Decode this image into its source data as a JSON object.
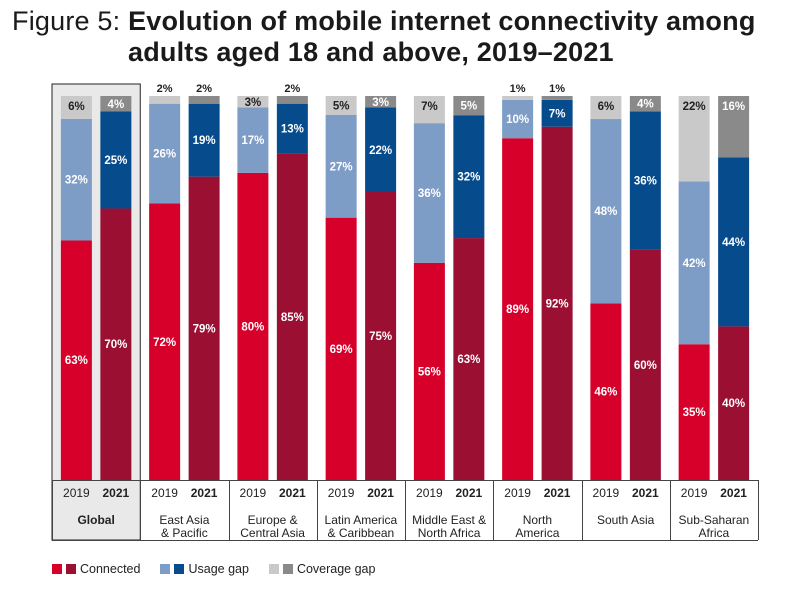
{
  "title": {
    "prefix": "Figure 5:",
    "line1": "Evolution of mobile internet connectivity among",
    "line2": "adults aged 18 and above, 2019–2021"
  },
  "colors": {
    "connected_2019": "#d6002a",
    "connected_2021": "#9b0f33",
    "usage_2019": "#7d9cc6",
    "usage_2021": "#064b8c",
    "coverage_2019": "#c9c9c9",
    "coverage_2021": "#8a8a8a",
    "global_bg": "#e9e9e9"
  },
  "legend": [
    {
      "label": "Connected",
      "c2019": "#d6002a",
      "c2021": "#9b0f33"
    },
    {
      "label": "Usage gap",
      "c2019": "#7d9cc6",
      "c2021": "#064b8c"
    },
    {
      "label": "Coverage gap",
      "c2019": "#c9c9c9",
      "c2021": "#8a8a8a"
    }
  ],
  "chart_data": {
    "type": "bar",
    "stacked": true,
    "percent": true,
    "ylim": [
      0,
      100
    ],
    "years": [
      "2019",
      "2021"
    ],
    "series_order": [
      "Connected",
      "Usage gap",
      "Coverage gap"
    ],
    "categories": [
      {
        "label": [
          "Global"
        ],
        "bold": true,
        "v2019": [
          63,
          32,
          6
        ],
        "v2021": [
          70,
          25,
          4
        ]
      },
      {
        "label": [
          "East Asia",
          "& Pacific"
        ],
        "v2019": [
          72,
          26,
          2
        ],
        "v2021": [
          79,
          19,
          2
        ]
      },
      {
        "label": [
          "Europe &",
          "Central Asia"
        ],
        "v2019": [
          80,
          17,
          3
        ],
        "v2021": [
          85,
          13,
          2
        ]
      },
      {
        "label": [
          "Latin America",
          "& Caribbean"
        ],
        "v2019": [
          69,
          27,
          5
        ],
        "v2021": [
          75,
          22,
          3
        ]
      },
      {
        "label": [
          "Middle East &",
          "North Africa"
        ],
        "v2019": [
          56,
          36,
          7
        ],
        "v2021": [
          63,
          32,
          5
        ]
      },
      {
        "label": [
          "North",
          "America"
        ],
        "v2019": [
          89,
          10,
          1
        ],
        "v2021": [
          92,
          7,
          1
        ]
      },
      {
        "label": [
          "South Asia"
        ],
        "v2019": [
          46,
          48,
          6
        ],
        "v2021": [
          60,
          36,
          4
        ]
      },
      {
        "label": [
          "Sub-Saharan",
          "Africa"
        ],
        "v2019": [
          35,
          42,
          22
        ],
        "v2021": [
          40,
          44,
          16
        ]
      }
    ]
  }
}
